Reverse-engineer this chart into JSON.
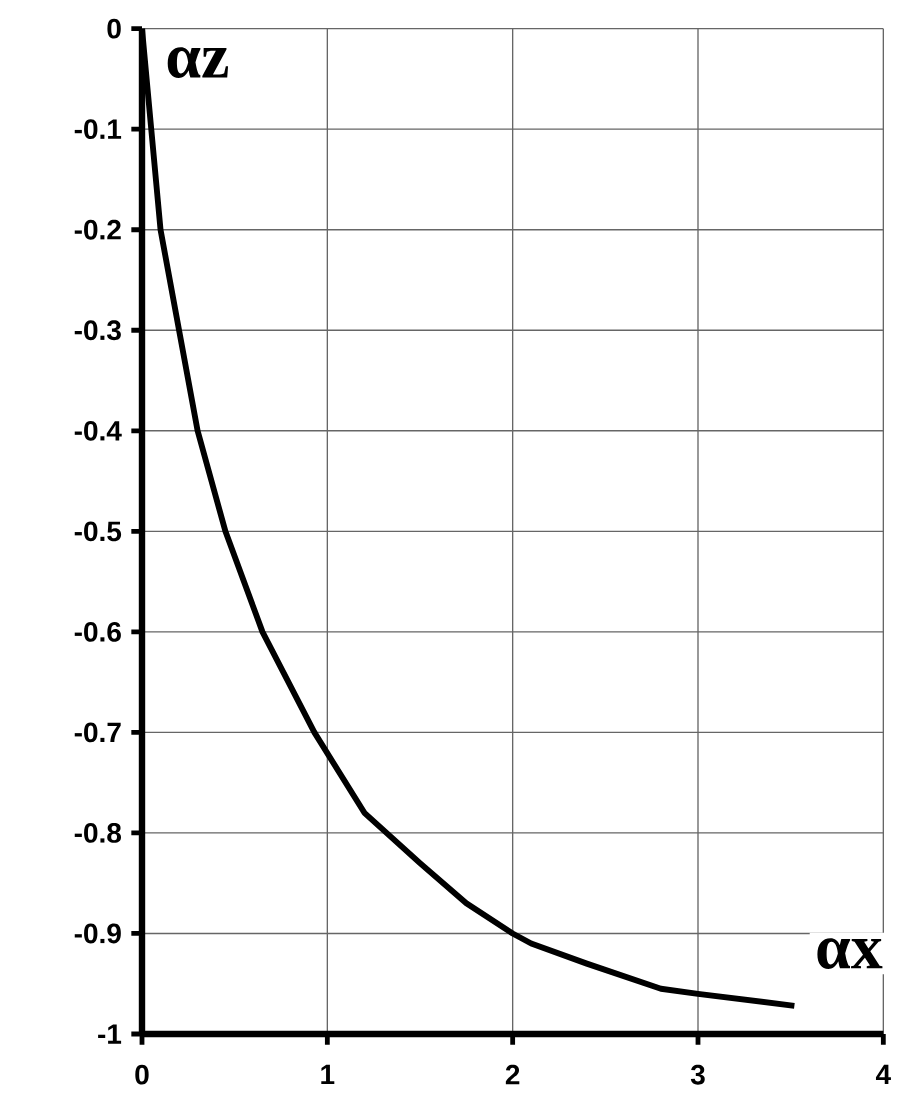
{
  "chart_data": {
    "type": "line",
    "xlabel": "αx",
    "ylabel": "αz",
    "series": [
      {
        "color": "#000000",
        "x": [
          0,
          0.05,
          0.1,
          0.2,
          0.3,
          0.45,
          0.65,
          0.93,
          1.2,
          1.5,
          1.75,
          2,
          2.1,
          2.4,
          2.8,
          3.0,
          3.52
        ],
        "values": [
          0,
          -0.1,
          -0.2,
          -0.3,
          -0.4,
          -0.5,
          -0.6,
          -0.7,
          -0.78,
          -0.83,
          -0.87,
          -0.9,
          -0.91,
          -0.93,
          -0.955,
          -0.96,
          -0.972
        ]
      }
    ],
    "xlim": [
      0,
      4
    ],
    "ylim": [
      -1,
      0
    ],
    "xticks": [
      0,
      1,
      2,
      3,
      4
    ],
    "yticks": [
      -1,
      -0.9,
      -0.8,
      -0.7,
      -0.6,
      -0.5,
      -0.4,
      -0.3,
      -0.2,
      -0.1,
      0
    ],
    "grid": true,
    "marker": "none",
    "line_style": "solid"
  }
}
